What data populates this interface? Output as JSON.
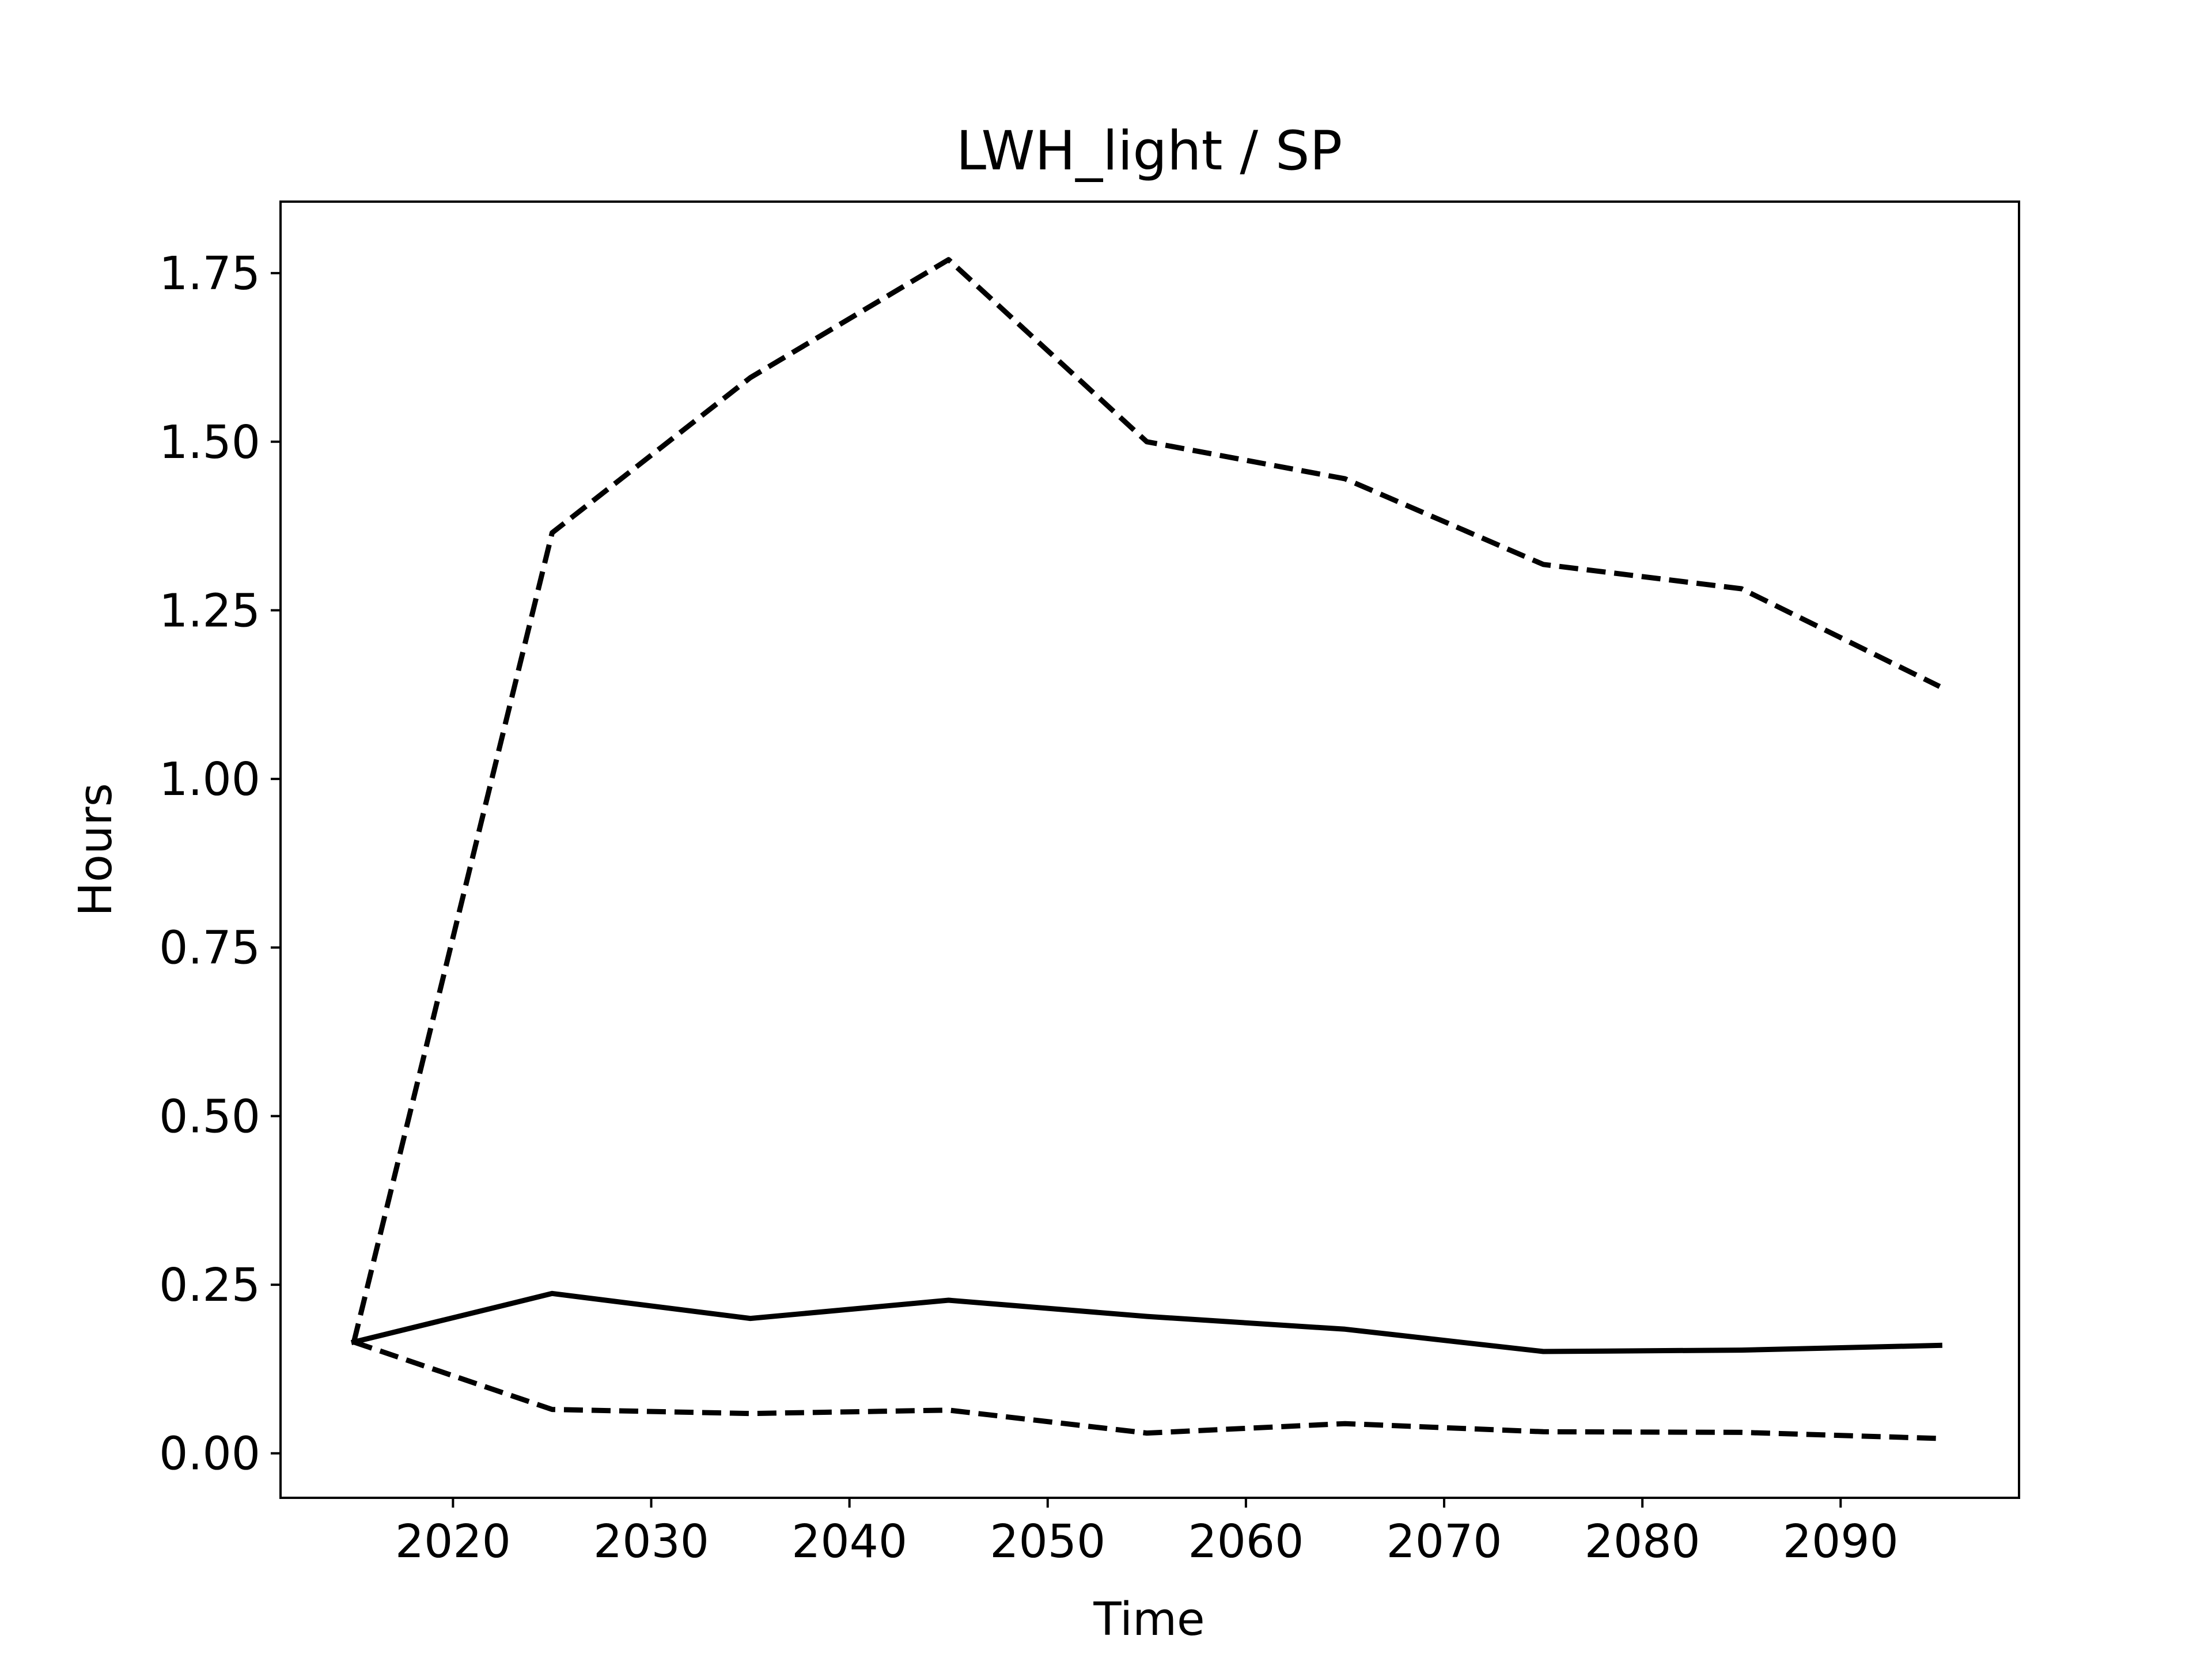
{
  "chart_data": {
    "type": "line",
    "title": "LWH_light / SP",
    "xlabel": "Time",
    "ylabel": "Hours",
    "xlim": [
      2011.3,
      2099.0
    ],
    "ylim": [
      -0.066,
      1.856
    ],
    "x_ticks": [
      2020,
      2030,
      2040,
      2050,
      2060,
      2070,
      2080,
      2090
    ],
    "y_ticks": [
      0.0,
      0.25,
      0.5,
      0.75,
      1.0,
      1.25,
      1.5,
      1.75
    ],
    "y_tick_labels": [
      "0.00",
      "0.25",
      "0.50",
      "0.75",
      "1.00",
      "1.25",
      "1.50",
      "1.75"
    ],
    "grid": false,
    "legend": "none",
    "color": "#000000",
    "x": [
      2015,
      2025,
      2035,
      2045,
      2055,
      2065,
      2075,
      2085,
      2095
    ],
    "series": [
      {
        "style": "solid",
        "values": [
          0.165,
          0.237,
          0.2,
          0.227,
          0.203,
          0.184,
          0.151,
          0.153,
          0.16
        ]
      },
      {
        "style": "dashed",
        "values": [
          0.165,
          1.365,
          1.595,
          1.77,
          1.5,
          1.445,
          1.318,
          1.282,
          1.137
        ]
      },
      {
        "style": "dashed",
        "values": [
          0.165,
          0.065,
          0.059,
          0.064,
          0.03,
          0.044,
          0.032,
          0.031,
          0.022
        ]
      }
    ]
  }
}
